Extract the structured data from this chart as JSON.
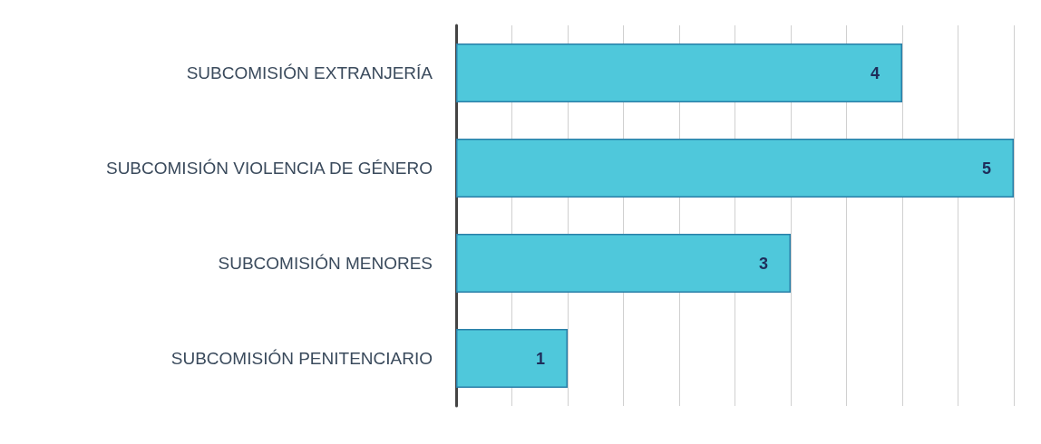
{
  "chart_data": {
    "type": "bar",
    "orientation": "horizontal",
    "categories": [
      "SUBCOMISIÓN EXTRANJERÍA",
      "SUBCOMISIÓN VIOLENCIA DE GÉNERO",
      "SUBCOMISIÓN MENORES",
      "SUBCOMISIÓN PENITENCIARIO"
    ],
    "values": [
      4,
      5,
      3,
      1
    ],
    "color": "#4fc8db",
    "data_labels": true,
    "xlim": [
      0,
      5
    ],
    "xticks": [
      {
        "value": 0,
        "label": null
      },
      {
        "value": 0.5,
        "label": null
      },
      {
        "value": 1,
        "label": null
      },
      {
        "value": 1.5,
        "label": null
      },
      {
        "value": 2,
        "label": null
      },
      {
        "value": 2.5,
        "label": null
      },
      {
        "value": 3,
        "label": null
      },
      {
        "value": 3.5,
        "label": null
      },
      {
        "value": 4,
        "label": null
      },
      {
        "value": 4.5,
        "label": null
      },
      {
        "value": 5,
        "label": null
      }
    ],
    "grid": "x",
    "tick_labels": "y"
  }
}
